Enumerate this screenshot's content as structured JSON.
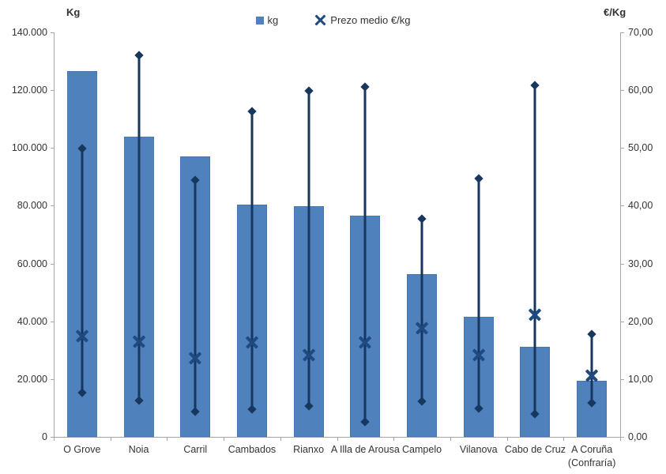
{
  "chart_data": {
    "type": "bar",
    "title": "",
    "categories": [
      "O Grove",
      "Noia",
      "Carril",
      "Cambados",
      "Rianxo",
      "A Illa de Arousa",
      "Campelo",
      "Vilanova",
      "Cabo de Cruz",
      "A Coruña (Confraría)"
    ],
    "series": [
      {
        "name": "kg",
        "type": "bar",
        "axis": "left",
        "color": "#4f81bd",
        "values": [
          126500,
          103800,
          97000,
          80400,
          79800,
          76500,
          56300,
          41500,
          31200,
          19500
        ]
      },
      {
        "name": "Prezo medio €/kg",
        "type": "scatter-x",
        "axis": "right",
        "color": "#1f4a80",
        "values": [
          17.5,
          16.5,
          13.7,
          16.4,
          14.2,
          16.4,
          18.9,
          14.2,
          21.2,
          10.7
        ]
      },
      {
        "name": "price-range-high",
        "type": "hilo-high",
        "axis": "right",
        "color": "#17375e",
        "values": [
          49.9,
          66.0,
          44.4,
          56.3,
          59.9,
          60.5,
          37.7,
          44.7,
          60.8,
          17.8
        ]
      },
      {
        "name": "price-range-low",
        "type": "hilo-low",
        "axis": "right",
        "color": "#17375e",
        "values": [
          7.7,
          6.3,
          4.4,
          4.8,
          5.3,
          2.6,
          6.2,
          4.9,
          4.0,
          5.9
        ]
      }
    ],
    "axes": {
      "left": {
        "title": "Kg",
        "min": 0,
        "max": 140000,
        "tick_labels": [
          "140.000",
          "120.000",
          "100.000",
          "80.000",
          "60.000",
          "40.000",
          "20.000",
          "0"
        ]
      },
      "right": {
        "title": "€/Kg",
        "min": 0,
        "max": 70,
        "tick_labels": [
          "70,00",
          "60,00",
          "50,00",
          "40,00",
          "30,00",
          "20,00",
          "10,00",
          "0,00"
        ]
      }
    },
    "grid": false,
    "legend_position": "top-center",
    "legend": [
      {
        "label": "kg",
        "marker": "square"
      },
      {
        "label": "Prezo medio €/kg",
        "marker": "x"
      }
    ]
  }
}
